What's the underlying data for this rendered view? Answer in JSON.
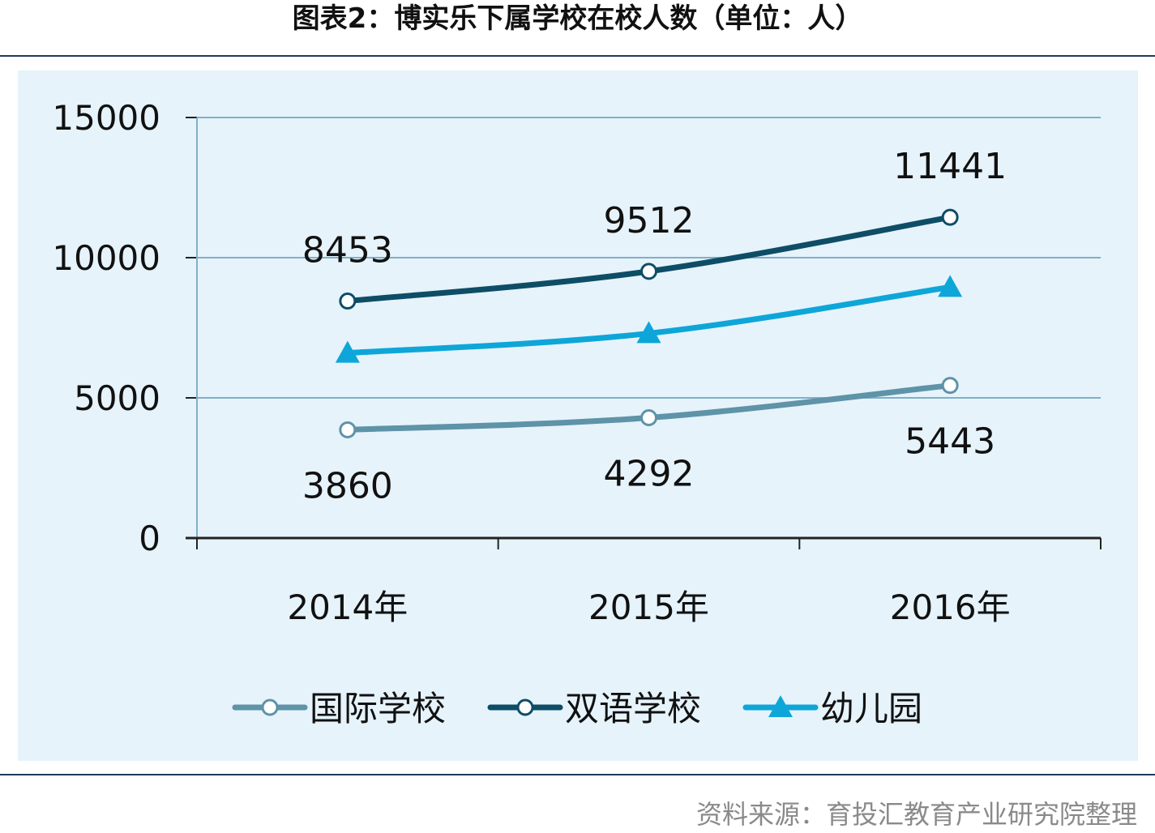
{
  "title": "图表2：博实乐下属学校在校人数（单位：人）",
  "source": "资料来源：育投汇教育产业研究院整理",
  "colors": {
    "国际学校": "#5e93a8",
    "双语学校": "#0e4d66",
    "幼儿园": "#0ea6d8",
    "gridline": "#7fb0c8",
    "axis": "#222222",
    "panel": "#e6f3fb",
    "rule": "#1f3a5a"
  },
  "chart_data": {
    "type": "line",
    "categories": [
      "2014年",
      "2015年",
      "2016年"
    ],
    "y_ticks": [
      "0",
      "5000",
      "10000",
      "15000"
    ],
    "ylim": [
      0,
      15000
    ],
    "grid": true,
    "legend_position": "bottom",
    "series": [
      {
        "name": "国际学校",
        "values": [
          3860,
          4292,
          5443
        ],
        "marker": "circle",
        "labels": [
          "3860",
          "4292",
          "5443"
        ],
        "label_position": "below"
      },
      {
        "name": "双语学校",
        "values": [
          8453,
          9512,
          11441
        ],
        "marker": "circle",
        "labels": [
          "8453",
          "9512",
          "11441"
        ],
        "label_position": "above"
      },
      {
        "name": "幼儿园",
        "values": [
          6600,
          7300,
          8950
        ],
        "marker": "triangle",
        "labels": []
      }
    ]
  }
}
